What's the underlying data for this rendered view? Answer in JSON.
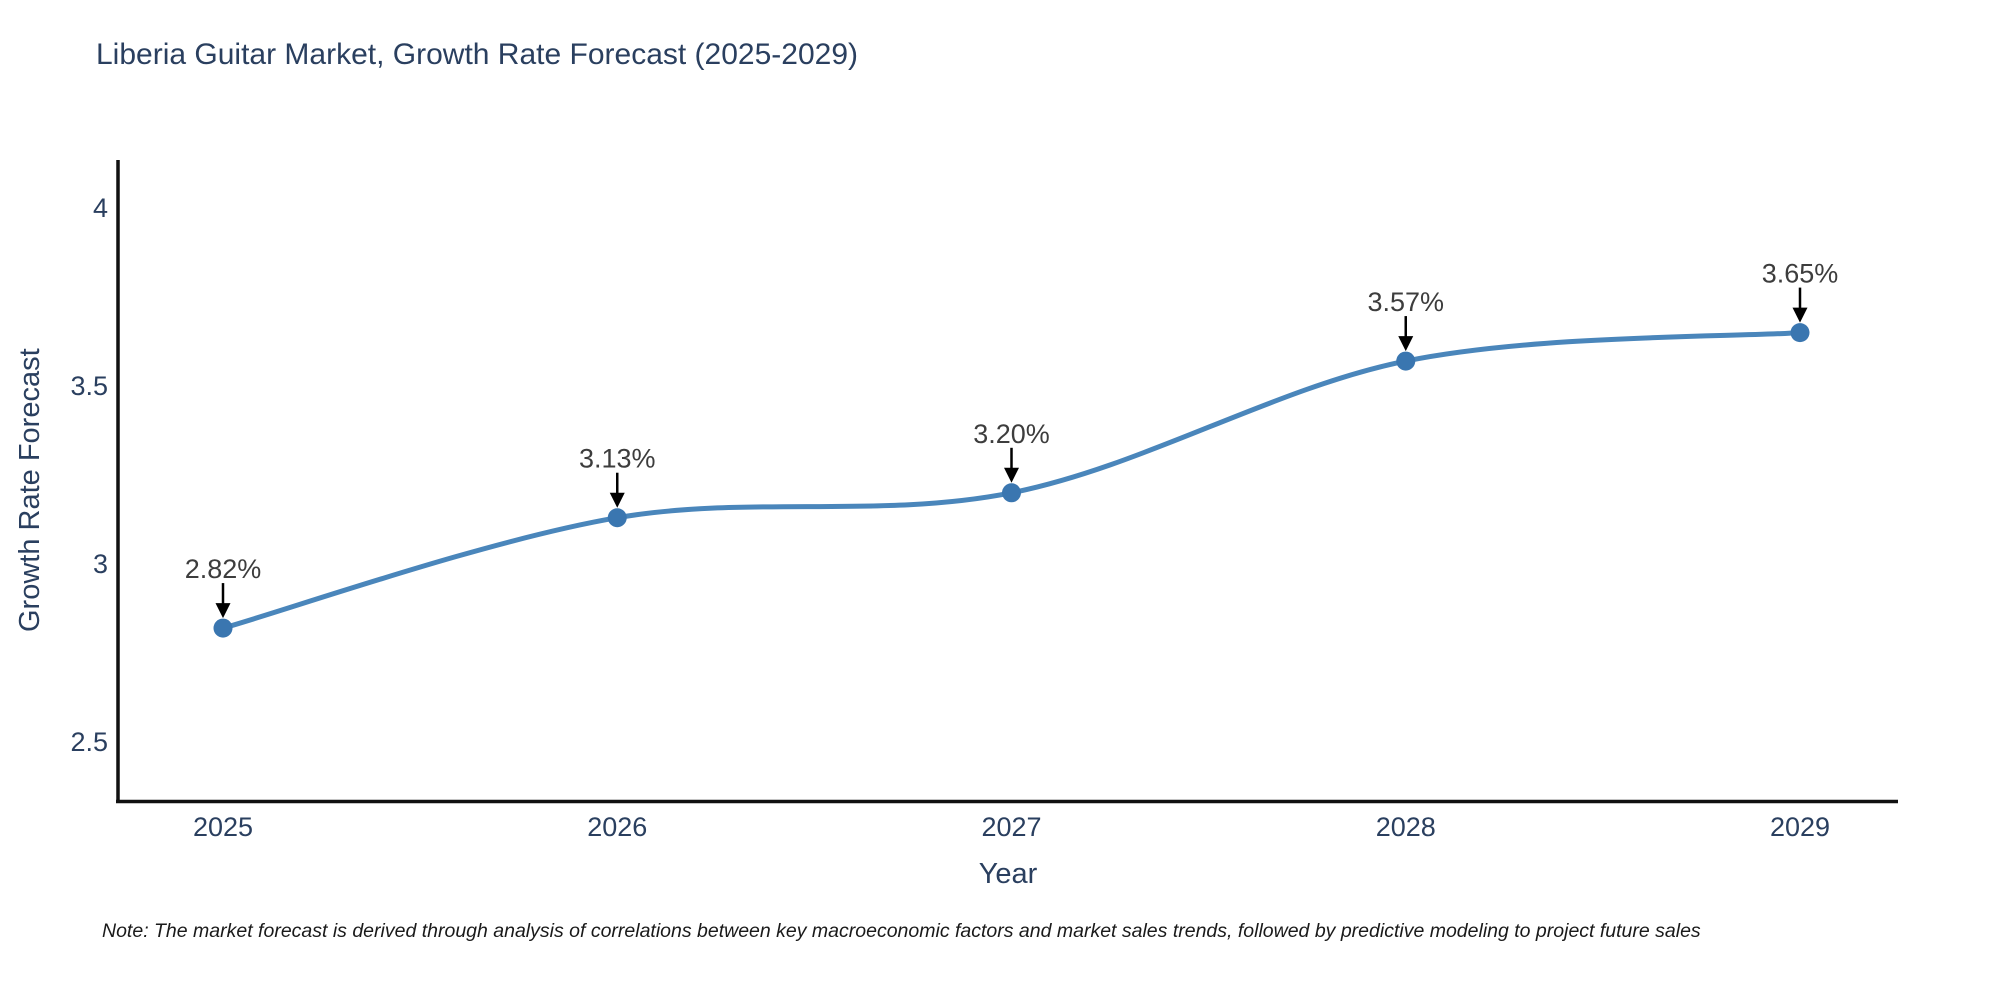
{
  "note": "Note: The market forecast is derived through analysis of correlations between key macroeconomic factors and market sales trends, followed by predictive modeling to project future sales",
  "chart_data": {
    "type": "line",
    "title": "Liberia Guitar Market, Growth Rate Forecast (2025-2029)",
    "xlabel": "Year",
    "ylabel": "Growth Rate Forecast",
    "x_labels": [
      "2025",
      "2026",
      "2027",
      "2028",
      "2029"
    ],
    "x_values": [
      2025,
      2026,
      2027,
      2028,
      2029
    ],
    "series": [
      {
        "name": "Growth Rate Forecast",
        "values": [
          2.82,
          3.13,
          3.2,
          3.57,
          3.65
        ]
      }
    ],
    "point_labels": [
      "2.82%",
      "3.13%",
      "3.20%",
      "3.57%",
      "3.65%"
    ],
    "ytick_labels": [
      "4",
      "3.5",
      "3",
      "2.5"
    ],
    "ytick_values": [
      4,
      3.5,
      3,
      2.5
    ],
    "ylim": [
      2.33,
      4.14
    ],
    "line_shape": "spline",
    "grid": false,
    "legend_position": "none",
    "colors": {
      "line": "#4a86bb",
      "marker": "#3a76b0",
      "axis": "#111111",
      "title_text": "#2a3f5f",
      "tick_text": "#2a3f5f",
      "annotation_text": "#3d3d3d",
      "arrow": "#000000"
    }
  }
}
